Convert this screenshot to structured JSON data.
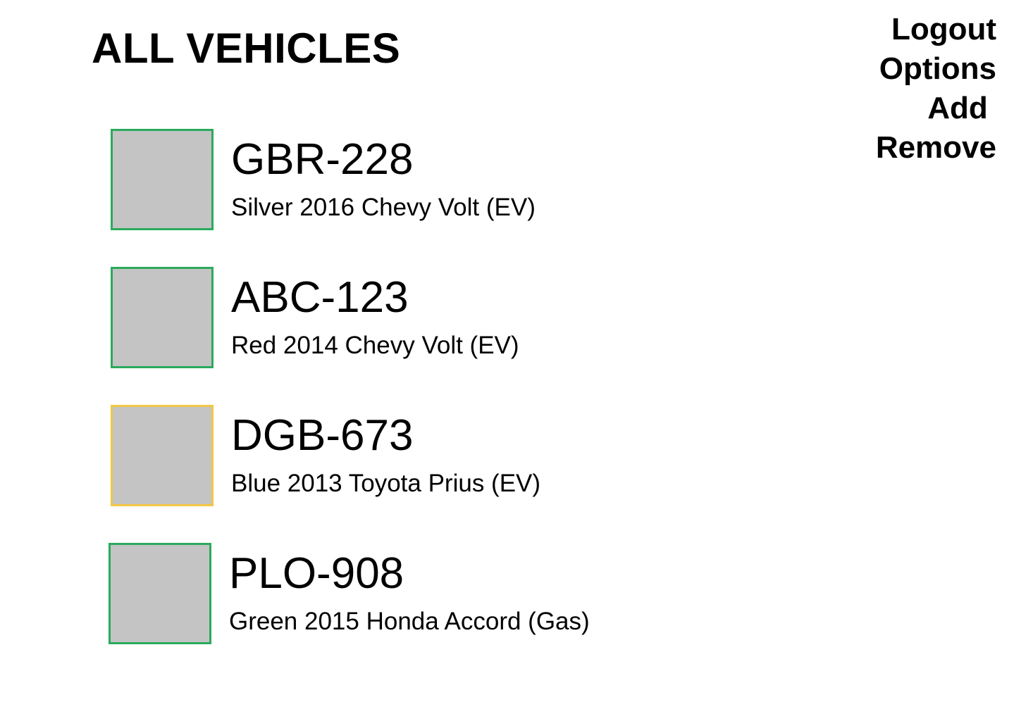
{
  "page": {
    "title": "ALL VEHICLES"
  },
  "menu": {
    "logout": "Logout",
    "options": "Options",
    "add": "Add ",
    "remove": "Remove"
  },
  "colors": {
    "status_ok": "#2aaa5c",
    "status_warning": "#f2c744",
    "thumbnail_placeholder": "#c4c4c4"
  },
  "vehicles": [
    {
      "plate": "GBR-228",
      "description": "Silver 2016 Chevy Volt (EV)",
      "status": "ok"
    },
    {
      "plate": "ABC-123",
      "description": "Red 2014 Chevy Volt (EV)",
      "status": "ok"
    },
    {
      "plate": "DGB-673",
      "description": "Blue 2013 Toyota Prius (EV)",
      "status": "warning"
    },
    {
      "plate": "PLO-908",
      "description": "Green 2015 Honda Accord (Gas)",
      "status": "ok"
    }
  ]
}
